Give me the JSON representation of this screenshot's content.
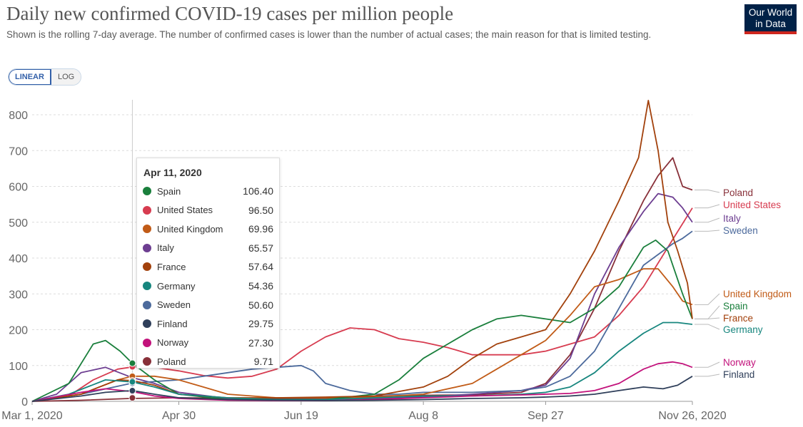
{
  "header": {
    "title": "Daily new confirmed COVID-19 cases per million people",
    "subtitle": "Shown is the rolling 7-day average. The number of confirmed cases is lower than the number of actual cases; the main reason for that is limited testing.",
    "logo_line1": "Our World",
    "logo_line2": "in Data"
  },
  "controls": {
    "linear_label": "LINEAR",
    "log_label": "LOG",
    "active": "LINEAR"
  },
  "tooltip": {
    "date": "Apr 11, 2020",
    "rows": [
      {
        "name": "Spain",
        "value": "106.40",
        "color": "#1a7f3c"
      },
      {
        "name": "United States",
        "value": "96.50",
        "color": "#d73c50"
      },
      {
        "name": "United Kingdom",
        "value": "69.96",
        "color": "#c15b17"
      },
      {
        "name": "Italy",
        "value": "65.57",
        "color": "#6d3e91"
      },
      {
        "name": "France",
        "value": "57.64",
        "color": "#a2410c"
      },
      {
        "name": "Germany",
        "value": "54.36",
        "color": "#17867e"
      },
      {
        "name": "Sweden",
        "value": "50.60",
        "color": "#4c6a9c"
      },
      {
        "name": "Finland",
        "value": "29.75",
        "color": "#2f3f5a"
      },
      {
        "name": "Norway",
        "value": "27.30",
        "color": "#c2127b"
      },
      {
        "name": "Poland",
        "value": "9.71",
        "color": "#883039"
      }
    ]
  },
  "chart_data": {
    "type": "line",
    "x_start": "Mar 1, 2020",
    "x_end": "Nov 26, 2020",
    "x_tick_labels": [
      "Mar 1, 2020",
      "Apr 30",
      "Jun 19",
      "Aug 8",
      "Sep 27",
      "Nov 26, 2020"
    ],
    "x_tick_days": [
      0,
      60,
      110,
      160,
      210,
      270
    ],
    "y_ticks": [
      0,
      100,
      200,
      300,
      400,
      500,
      600,
      700,
      800
    ],
    "ylim": [
      0,
      850
    ],
    "hover_day": 41,
    "grid": "horizontal dashed",
    "legend": "right end labels",
    "series": [
      {
        "name": "Poland",
        "color": "#883039",
        "points": [
          [
            0,
            0
          ],
          [
            20,
            3
          ],
          [
            40,
            8
          ],
          [
            60,
            10
          ],
          [
            80,
            9
          ],
          [
            100,
            8
          ],
          [
            120,
            7
          ],
          [
            140,
            15
          ],
          [
            160,
            17
          ],
          [
            180,
            18
          ],
          [
            200,
            25
          ],
          [
            210,
            50
          ],
          [
            220,
            130
          ],
          [
            230,
            260
          ],
          [
            240,
            420
          ],
          [
            250,
            560
          ],
          [
            256,
            630
          ],
          [
            262,
            680
          ],
          [
            266,
            600
          ],
          [
            270,
            590
          ]
        ]
      },
      {
        "name": "United States",
        "color": "#d73c50",
        "points": [
          [
            0,
            0
          ],
          [
            15,
            15
          ],
          [
            25,
            60
          ],
          [
            35,
            90
          ],
          [
            41,
            96
          ],
          [
            50,
            95
          ],
          [
            60,
            85
          ],
          [
            70,
            72
          ],
          [
            80,
            65
          ],
          [
            90,
            70
          ],
          [
            100,
            90
          ],
          [
            110,
            140
          ],
          [
            120,
            180
          ],
          [
            130,
            205
          ],
          [
            140,
            200
          ],
          [
            150,
            175
          ],
          [
            160,
            165
          ],
          [
            170,
            150
          ],
          [
            180,
            130
          ],
          [
            190,
            130
          ],
          [
            200,
            130
          ],
          [
            210,
            140
          ],
          [
            220,
            160
          ],
          [
            230,
            180
          ],
          [
            240,
            240
          ],
          [
            250,
            320
          ],
          [
            260,
            430
          ],
          [
            270,
            540
          ]
        ]
      },
      {
        "name": "Italy",
        "color": "#6d3e91",
        "points": [
          [
            0,
            0
          ],
          [
            10,
            20
          ],
          [
            20,
            80
          ],
          [
            30,
            95
          ],
          [
            41,
            66
          ],
          [
            50,
            50
          ],
          [
            60,
            25
          ],
          [
            80,
            8
          ],
          [
            100,
            5
          ],
          [
            120,
            5
          ],
          [
            140,
            8
          ],
          [
            160,
            12
          ],
          [
            180,
            20
          ],
          [
            200,
            30
          ],
          [
            210,
            45
          ],
          [
            220,
            120
          ],
          [
            230,
            300
          ],
          [
            240,
            430
          ],
          [
            250,
            530
          ],
          [
            256,
            580
          ],
          [
            262,
            570
          ],
          [
            266,
            540
          ],
          [
            270,
            500
          ]
        ]
      },
      {
        "name": "Sweden",
        "color": "#4c6a9c",
        "points": [
          [
            0,
            0
          ],
          [
            20,
            20
          ],
          [
            41,
            51
          ],
          [
            60,
            60
          ],
          [
            70,
            70
          ],
          [
            80,
            80
          ],
          [
            90,
            90
          ],
          [
            100,
            95
          ],
          [
            110,
            100
          ],
          [
            115,
            85
          ],
          [
            120,
            50
          ],
          [
            130,
            30
          ],
          [
            140,
            20
          ],
          [
            150,
            20
          ],
          [
            160,
            25
          ],
          [
            180,
            25
          ],
          [
            200,
            30
          ],
          [
            210,
            40
          ],
          [
            220,
            70
          ],
          [
            230,
            140
          ],
          [
            240,
            260
          ],
          [
            250,
            380
          ],
          [
            258,
            420
          ],
          [
            262,
            440
          ],
          [
            266,
            455
          ],
          [
            270,
            475
          ]
        ]
      },
      {
        "name": "United Kingdom",
        "color": "#c15b17",
        "points": [
          [
            0,
            0
          ],
          [
            20,
            20
          ],
          [
            35,
            60
          ],
          [
            41,
            70
          ],
          [
            50,
            70
          ],
          [
            60,
            60
          ],
          [
            70,
            40
          ],
          [
            80,
            20
          ],
          [
            100,
            10
          ],
          [
            120,
            10
          ],
          [
            140,
            12
          ],
          [
            160,
            20
          ],
          [
            180,
            50
          ],
          [
            190,
            90
          ],
          [
            200,
            130
          ],
          [
            210,
            170
          ],
          [
            220,
            240
          ],
          [
            230,
            320
          ],
          [
            240,
            340
          ],
          [
            250,
            370
          ],
          [
            256,
            370
          ],
          [
            262,
            320
          ],
          [
            266,
            280
          ],
          [
            270,
            270
          ]
        ]
      },
      {
        "name": "Spain",
        "color": "#1a7f3c",
        "points": [
          [
            0,
            0
          ],
          [
            15,
            50
          ],
          [
            25,
            160
          ],
          [
            30,
            170
          ],
          [
            36,
            140
          ],
          [
            41,
            106
          ],
          [
            50,
            60
          ],
          [
            60,
            20
          ],
          [
            80,
            5
          ],
          [
            100,
            5
          ],
          [
            120,
            5
          ],
          [
            140,
            20
          ],
          [
            150,
            60
          ],
          [
            160,
            120
          ],
          [
            170,
            160
          ],
          [
            180,
            200
          ],
          [
            190,
            230
          ],
          [
            200,
            240
          ],
          [
            210,
            230
          ],
          [
            220,
            220
          ],
          [
            230,
            260
          ],
          [
            240,
            320
          ],
          [
            250,
            430
          ],
          [
            255,
            450
          ],
          [
            260,
            420
          ],
          [
            266,
            300
          ],
          [
            270,
            230
          ]
        ]
      },
      {
        "name": "France",
        "color": "#a2410c",
        "points": [
          [
            0,
            0
          ],
          [
            20,
            20
          ],
          [
            35,
            60
          ],
          [
            41,
            58
          ],
          [
            50,
            45
          ],
          [
            60,
            20
          ],
          [
            80,
            10
          ],
          [
            100,
            10
          ],
          [
            120,
            12
          ],
          [
            140,
            15
          ],
          [
            160,
            40
          ],
          [
            170,
            70
          ],
          [
            180,
            120
          ],
          [
            190,
            160
          ],
          [
            200,
            180
          ],
          [
            210,
            200
          ],
          [
            220,
            300
          ],
          [
            230,
            420
          ],
          [
            240,
            560
          ],
          [
            248,
            680
          ],
          [
            252,
            840
          ],
          [
            256,
            700
          ],
          [
            260,
            500
          ],
          [
            264,
            420
          ],
          [
            268,
            330
          ],
          [
            270,
            230
          ]
        ]
      },
      {
        "name": "Germany",
        "color": "#17867e",
        "points": [
          [
            0,
            0
          ],
          [
            15,
            20
          ],
          [
            30,
            60
          ],
          [
            41,
            54
          ],
          [
            50,
            40
          ],
          [
            60,
            20
          ],
          [
            80,
            10
          ],
          [
            100,
            5
          ],
          [
            120,
            5
          ],
          [
            140,
            10
          ],
          [
            160,
            15
          ],
          [
            180,
            15
          ],
          [
            200,
            20
          ],
          [
            210,
            25
          ],
          [
            220,
            40
          ],
          [
            230,
            80
          ],
          [
            240,
            140
          ],
          [
            250,
            190
          ],
          [
            258,
            220
          ],
          [
            264,
            220
          ],
          [
            270,
            215
          ]
        ]
      },
      {
        "name": "Norway",
        "color": "#c2127b",
        "points": [
          [
            0,
            0
          ],
          [
            20,
            25
          ],
          [
            30,
            35
          ],
          [
            41,
            27
          ],
          [
            50,
            15
          ],
          [
            60,
            8
          ],
          [
            80,
            3
          ],
          [
            100,
            2
          ],
          [
            120,
            2
          ],
          [
            140,
            5
          ],
          [
            160,
            10
          ],
          [
            180,
            15
          ],
          [
            200,
            18
          ],
          [
            210,
            20
          ],
          [
            220,
            22
          ],
          [
            230,
            30
          ],
          [
            240,
            50
          ],
          [
            250,
            90
          ],
          [
            256,
            105
          ],
          [
            262,
            110
          ],
          [
            266,
            105
          ],
          [
            270,
            95
          ]
        ]
      },
      {
        "name": "Finland",
        "color": "#2f3f5a",
        "points": [
          [
            0,
            0
          ],
          [
            20,
            15
          ],
          [
            30,
            25
          ],
          [
            41,
            30
          ],
          [
            50,
            20
          ],
          [
            60,
            10
          ],
          [
            80,
            5
          ],
          [
            100,
            3
          ],
          [
            120,
            2
          ],
          [
            140,
            3
          ],
          [
            160,
            5
          ],
          [
            180,
            8
          ],
          [
            200,
            10
          ],
          [
            210,
            12
          ],
          [
            220,
            15
          ],
          [
            230,
            20
          ],
          [
            240,
            30
          ],
          [
            250,
            40
          ],
          [
            258,
            35
          ],
          [
            264,
            45
          ],
          [
            270,
            70
          ]
        ]
      }
    ],
    "end_labels": [
      {
        "name": "Poland",
        "color": "#883039",
        "y": 275
      },
      {
        "name": "United States",
        "color": "#d73c50",
        "y": 292
      },
      {
        "name": "Italy",
        "color": "#6d3e91",
        "y": 311
      },
      {
        "name": "Sweden",
        "color": "#4c6a9c",
        "y": 328
      },
      {
        "name": "United Kingdom",
        "color": "#c15b17",
        "y": 417
      },
      {
        "name": "Spain",
        "color": "#1a7f3c",
        "y": 434
      },
      {
        "name": "France",
        "color": "#a2410c",
        "y": 451
      },
      {
        "name": "Germany",
        "color": "#17867e",
        "y": 467
      },
      {
        "name": "Norway",
        "color": "#c2127b",
        "y": 513
      },
      {
        "name": "Finland",
        "color": "#2f3f5a",
        "y": 530
      }
    ]
  }
}
